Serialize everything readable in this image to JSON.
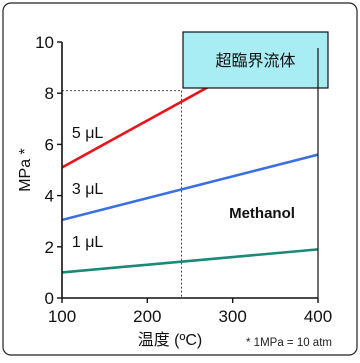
{
  "chart_data": {
    "type": "line",
    "title": "",
    "xlabel": "温度 (ºC)",
    "ylabel": "MPa *",
    "xlim": [
      100,
      400
    ],
    "ylim": [
      0,
      10
    ],
    "x_ticks": [
      "100",
      "200",
      "300",
      "400"
    ],
    "y_ticks": [
      "0",
      "2",
      "4",
      "6",
      "8",
      "10"
    ],
    "series": [
      {
        "name": "5 μL",
        "x": [
          100,
          400
        ],
        "y": [
          5.1,
          10.6
        ],
        "color": "#e8141c"
      },
      {
        "name": "3 μL",
        "x": [
          100,
          400
        ],
        "y": [
          3.05,
          5.6
        ],
        "color": "#3a6fe0"
      },
      {
        "name": "1 μL",
        "x": [
          100,
          400
        ],
        "y": [
          1.0,
          1.9
        ],
        "color": "#1a8a78"
      }
    ],
    "reference_lines": {
      "x": 240,
      "y": 8.1
    },
    "annotations": {
      "box_label": "超臨界流体",
      "box_fill": "#a8ecf4",
      "compound": "Methanol",
      "footnote": "* 1MPa = 10 atm"
    },
    "grid": false
  }
}
